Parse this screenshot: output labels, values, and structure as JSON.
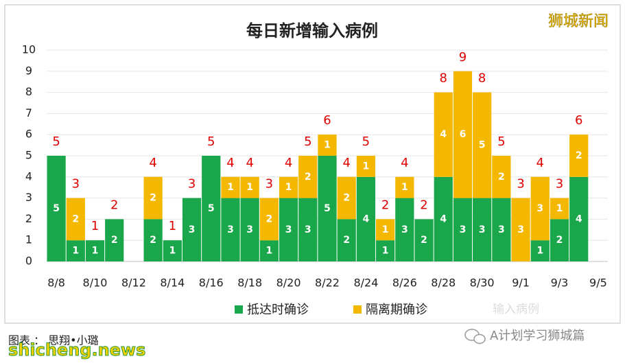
{
  "chart_data": {
    "type": "stacked_bar",
    "title": "每日新增输入病例",
    "categories": [
      "8/8",
      null,
      "8/10",
      null,
      "8/12",
      null,
      "8/14",
      null,
      "8/16",
      null,
      "8/18",
      null,
      "8/20",
      null,
      "8/22",
      null,
      "8/24",
      null,
      "8/26",
      null,
      "8/28",
      null,
      "8/30",
      null,
      "9/1",
      null,
      "9/3",
      null,
      "9/5"
    ],
    "series": [
      {
        "name": "抵达时确诊",
        "color": "#1aa64a",
        "values": [
          5,
          1,
          1,
          2,
          0,
          2,
          1,
          3,
          5,
          3,
          3,
          1,
          3,
          3,
          5,
          2,
          4,
          1,
          3,
          2,
          4,
          3,
          3,
          3,
          0,
          1,
          2,
          4,
          null
        ]
      },
      {
        "name": "隔离期确诊",
        "color": "#f5b800",
        "values": [
          0,
          2,
          0,
          0,
          0,
          2,
          0,
          0,
          0,
          1,
          1,
          2,
          1,
          2,
          1,
          2,
          1,
          1,
          1,
          0,
          4,
          6,
          5,
          2,
          3,
          3,
          1,
          2,
          null
        ]
      }
    ],
    "totals": [
      5,
      3,
      1,
      2,
      null,
      4,
      1,
      3,
      5,
      4,
      4,
      3,
      4,
      5,
      6,
      4,
      5,
      2,
      4,
      2,
      8,
      9,
      8,
      5,
      3,
      4,
      3,
      6,
      null
    ],
    "ylim": [
      0,
      10
    ],
    "yticks": [
      0,
      1,
      2,
      3,
      4,
      5,
      6,
      7,
      8,
      9,
      10
    ],
    "grid": true,
    "legend_position": "bottom",
    "annotations": {
      "brand": "狮城新闻",
      "faint": "输入病例",
      "credit": "图表 ： 思翔•小璐",
      "site": "shicheng.news",
      "wechat": "A计划学习狮城篇"
    }
  }
}
